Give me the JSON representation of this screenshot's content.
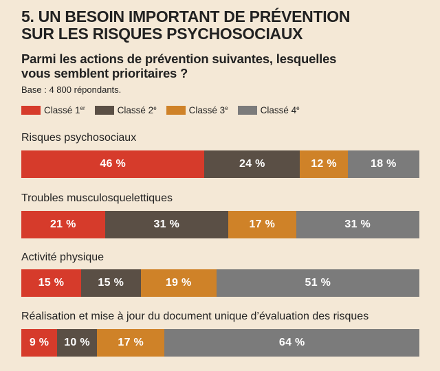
{
  "header": {
    "title_line1": "5. UN BESOIN IMPORTANT DE PRÉVENTION",
    "title_line2": "SUR LES RISQUES PSYCHOSOCIAUX",
    "subtitle_line1": "Parmi les actions de prévention suivantes, lesquelles",
    "subtitle_line2": "vous semblent prioritaires ?",
    "base": "Base : 4 800 répondants."
  },
  "legend": {
    "items": [
      {
        "text": "Classé 1",
        "sup": "er"
      },
      {
        "text": "Classé 2",
        "sup": "e"
      },
      {
        "text": "Classé 3",
        "sup": "e"
      },
      {
        "text": "Classé 4",
        "sup": "e"
      }
    ]
  },
  "colors": {
    "rank1": "#d63b2b",
    "rank2": "#5a4f45",
    "rank3": "#cf8228",
    "rank4": "#7b7b7b"
  },
  "chart_data": {
    "type": "bar",
    "stacked": true,
    "orientation": "horizontal",
    "unit": "%",
    "categories": [
      "Risques psychosociaux",
      "Troubles musculosquelettiques",
      "Activité physique",
      "Réalisation et mise à jour du document unique d’évaluation des risques"
    ],
    "series": [
      {
        "name": "Classé 1er",
        "values": [
          46,
          21,
          15,
          9
        ]
      },
      {
        "name": "Classé 2e",
        "values": [
          24,
          31,
          15,
          10
        ]
      },
      {
        "name": "Classé 3e",
        "values": [
          12,
          17,
          19,
          17
        ]
      },
      {
        "name": "Classé 4e",
        "values": [
          18,
          31,
          51,
          64
        ]
      }
    ],
    "data_labels": [
      [
        "46 %",
        "24 %",
        "12 %",
        "18 %"
      ],
      [
        "21 %",
        "31 %",
        "17 %",
        "31 %"
      ],
      [
        "15 %",
        "15 %",
        "19 %",
        "51 %"
      ],
      [
        "9 %",
        "10 %",
        "17 %",
        "64 %"
      ]
    ]
  }
}
